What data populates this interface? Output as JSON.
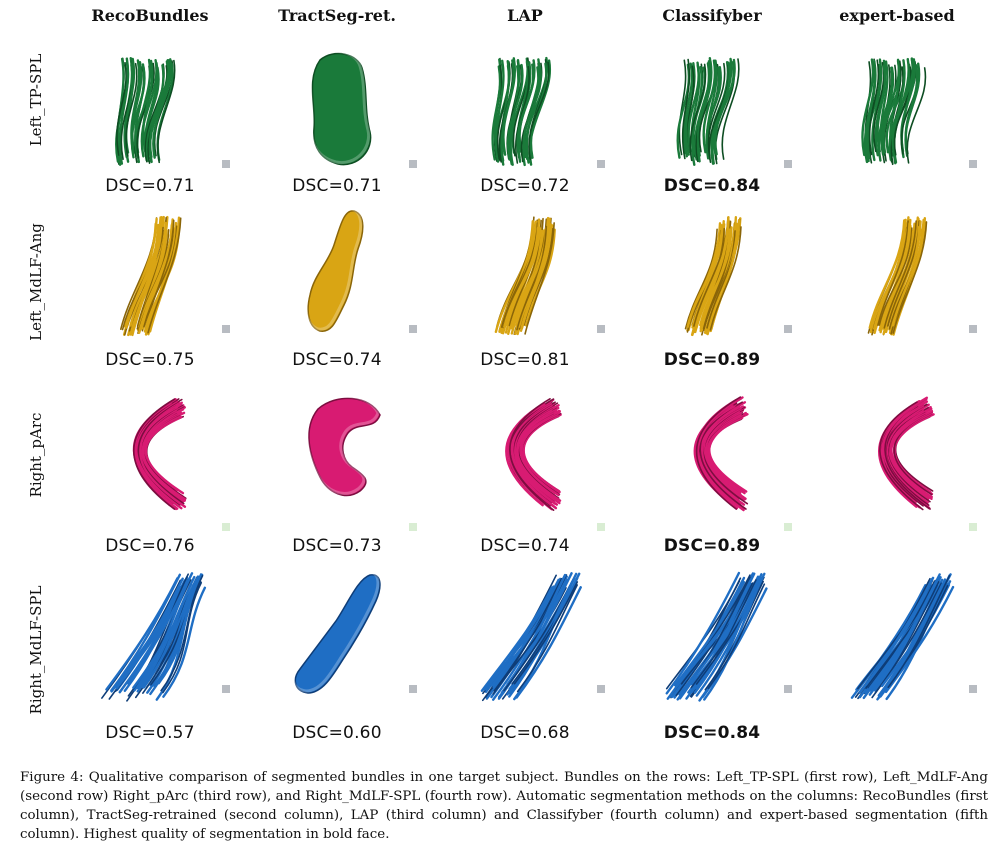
{
  "columns": [
    "RecoBundles",
    "TractSeg-ret.",
    "LAP",
    "Classifyber",
    "expert-based"
  ],
  "rows": [
    {
      "label": "Left_TP-SPL",
      "color": "#1a7a3a",
      "dark": "#0d4d22",
      "dsc": [
        "DSC=0.71",
        "DSC=0.71",
        "DSC=0.72",
        "DSC=0.84"
      ],
      "best_index": 3
    },
    {
      "label": "Left_MdLF-Ang",
      "color": "#d9a514",
      "dark": "#8a6508",
      "dsc": [
        "DSC=0.75",
        "DSC=0.74",
        "DSC=0.81",
        "DSC=0.89"
      ],
      "best_index": 3
    },
    {
      "label": "Right_pArc",
      "color": "#d81b72",
      "dark": "#7d0d40",
      "dsc": [
        "DSC=0.76",
        "DSC=0.73",
        "DSC=0.74",
        "DSC=0.89"
      ],
      "best_index": 3
    },
    {
      "label": "Right_MdLF-SPL",
      "color": "#1f6ec4",
      "dark": "#0e3d78",
      "dsc": [
        "DSC=0.57",
        "DSC=0.60",
        "DSC=0.68",
        "DSC=0.84"
      ],
      "best_index": 3
    }
  ],
  "caption": "Figure 4: Qualitative comparison of segmented bundles in one target subject. Bundles on the rows: Left_TP-SPL (first row), Left_MdLF-Ang (second row) Right_pArc (third row), and Right_MdLF-SPL (fourth row). Automatic segmentation methods on the columns: RecoBundles (first column), TractSeg-retrained (second column), LAP (third column) and Classifyber (fourth column) and expert-based segmentation (fifth column). Highest quality of segmentation in bold face."
}
